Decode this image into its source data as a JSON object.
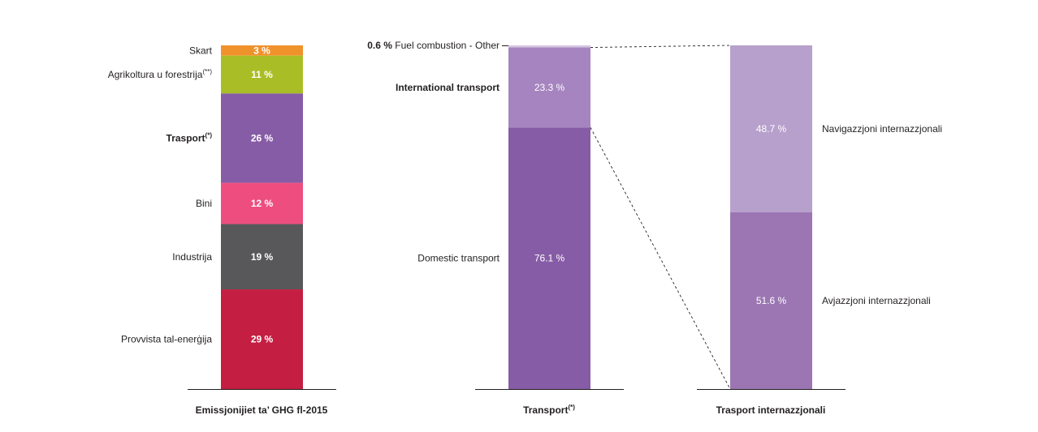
{
  "chart_data": [
    {
      "type": "bar",
      "stacked": true,
      "xlabel": "Emissjonijiet ta’ GHG fl-2015",
      "segments_top_to_bottom": [
        {
          "label": "Skart",
          "sup": "",
          "value": 3,
          "value_label": "3 %",
          "color": "#f0922b"
        },
        {
          "label": "Agrikoltura u forestrija",
          "sup": "(**)",
          "value": 11,
          "value_label": "11 %",
          "color": "#a9be26"
        },
        {
          "label": "Trasport",
          "sup": "(*)",
          "value": 26,
          "value_label": "26 %",
          "color": "#875ca6",
          "bold": true
        },
        {
          "label": "Bini",
          "sup": "",
          "value": 12,
          "value_label": "12 %",
          "color": "#ee4e7f"
        },
        {
          "label": "Industrija",
          "sup": "",
          "value": 19,
          "value_label": "19 %",
          "color": "#58585a"
        },
        {
          "label": "Provvista tal-enerġija",
          "sup": "",
          "value": 29,
          "value_label": "29 %",
          "color": "#c41e42"
        }
      ]
    },
    {
      "type": "bar",
      "stacked": true,
      "xlabel": "Transport",
      "xlabel_sup": "(*)",
      "segments_top_to_bottom": [
        {
          "label": "Fuel combustion - Other",
          "prefix": "0.6 %",
          "value": 0.6,
          "value_label": "",
          "color": "#d5c6e1"
        },
        {
          "label": "International transport",
          "value": 23.3,
          "value_label": "23.3 %",
          "color": "#a584bf",
          "bold": true
        },
        {
          "label": "Domestic transport",
          "value": 76.1,
          "value_label": "76.1 %",
          "color": "#875ca6"
        }
      ]
    },
    {
      "type": "bar",
      "stacked": true,
      "xlabel": "Trasport internazzjonali",
      "segments_top_to_bottom": [
        {
          "label": "Navigazzjoni internazzjonali",
          "value": 48.7,
          "value_label": "48.7 %",
          "color": "#b7a0cc"
        },
        {
          "label": "Avjazzjoni internazzjonali",
          "value": 51.6,
          "value_label": "51.6 %",
          "color": "#9b76b3"
        }
      ]
    }
  ]
}
